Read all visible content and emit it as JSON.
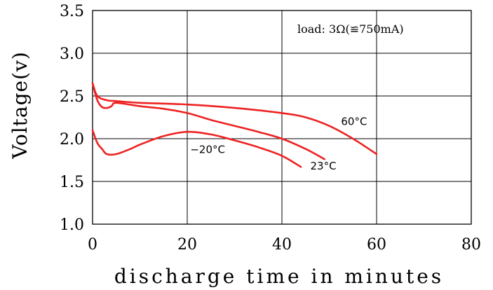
{
  "chart_data": {
    "type": "line",
    "xlabel": "discharge time in minutes",
    "ylabel": "Voltage(v)",
    "xlim": [
      0,
      80
    ],
    "ylim": [
      1.0,
      3.5
    ],
    "x_ticks": [
      "0",
      "20",
      "40",
      "60",
      "80"
    ],
    "y_ticks": [
      "1.0",
      "1.5",
      "2.0",
      "2.5",
      "3.0",
      "3.5"
    ],
    "grid": true,
    "annotation": "load: 3Ω(≌750mA)",
    "line_color": "#ee2222",
    "series": [
      {
        "name": "60°C",
        "x": [
          0,
          1,
          3,
          5,
          10,
          20,
          30,
          40,
          45,
          50,
          55,
          60
        ],
        "y": [
          2.65,
          2.5,
          2.45,
          2.44,
          2.42,
          2.4,
          2.36,
          2.3,
          2.25,
          2.15,
          2.0,
          1.82
        ]
      },
      {
        "name": "23°C",
        "x": [
          0,
          1,
          2,
          3,
          4,
          5,
          10,
          15,
          20,
          25,
          30,
          35,
          40,
          45,
          49
        ],
        "y": [
          2.65,
          2.45,
          2.37,
          2.36,
          2.38,
          2.42,
          2.38,
          2.35,
          2.3,
          2.22,
          2.15,
          2.08,
          2.0,
          1.88,
          1.76
        ]
      },
      {
        "name": "−20°C",
        "x": [
          0,
          1,
          2,
          3,
          5,
          8,
          10,
          15,
          20,
          25,
          30,
          35,
          40,
          44
        ],
        "y": [
          2.1,
          1.95,
          1.88,
          1.82,
          1.82,
          1.88,
          1.93,
          2.03,
          2.08,
          2.05,
          1.98,
          1.9,
          1.8,
          1.67
        ]
      }
    ]
  }
}
